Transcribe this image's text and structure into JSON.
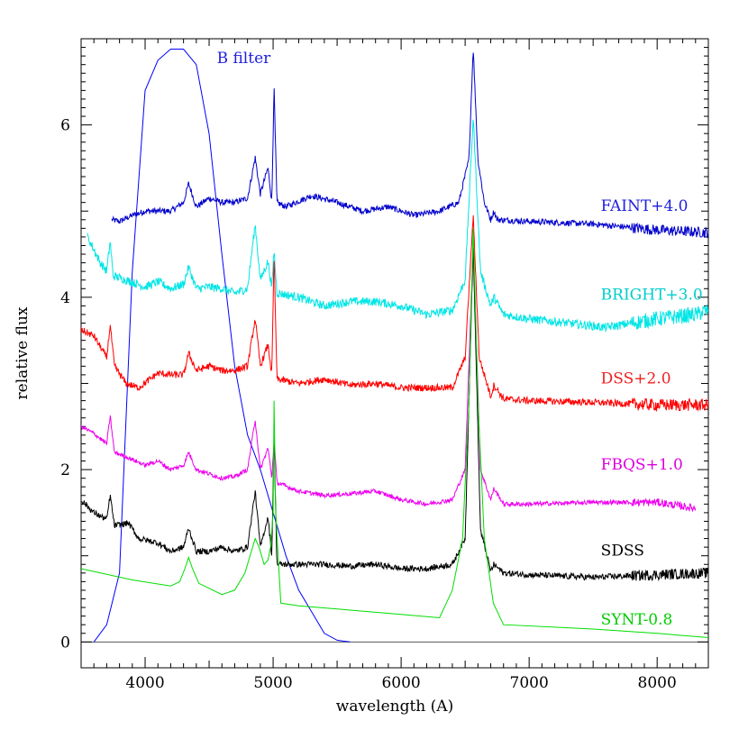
{
  "chart_data": {
    "type": "line",
    "title": "",
    "xlabel": "wavelength (A)",
    "ylabel": "relative flux",
    "xlim": [
      3500,
      8400
    ],
    "ylim": [
      -0.3,
      7.0
    ],
    "xticks": [
      4000,
      5000,
      6000,
      7000,
      8000
    ],
    "yticks": [
      0,
      2,
      4,
      6
    ],
    "zero_line": true,
    "series": [
      {
        "name": "B filter",
        "color": "#0000ff",
        "noise": 0,
        "points": [
          [
            3600,
            0.0
          ],
          [
            3700,
            0.2
          ],
          [
            3800,
            0.8
          ],
          [
            3900,
            4.3
          ],
          [
            4000,
            6.4
          ],
          [
            4100,
            6.75
          ],
          [
            4200,
            6.88
          ],
          [
            4300,
            6.88
          ],
          [
            4400,
            6.7
          ],
          [
            4500,
            5.9
          ],
          [
            4600,
            4.5
          ],
          [
            4700,
            3.2
          ],
          [
            4800,
            2.4
          ],
          [
            4900,
            2.0
          ],
          [
            5000,
            1.5
          ],
          [
            5100,
            1.0
          ],
          [
            5200,
            0.6
          ],
          [
            5300,
            0.35
          ],
          [
            5400,
            0.1
          ],
          [
            5500,
            0.02
          ],
          [
            5600,
            0.0
          ]
        ]
      },
      {
        "name": "FAINT+4.0",
        "color": "#0000cc",
        "noise": 0.035,
        "points": [
          [
            3740,
            4.9
          ],
          [
            3800,
            4.88
          ],
          [
            3900,
            4.95
          ],
          [
            4000,
            5.0
          ],
          [
            4100,
            5.0
          ],
          [
            4200,
            5.0
          ],
          [
            4300,
            5.1
          ],
          [
            4340,
            5.32
          ],
          [
            4400,
            5.05
          ],
          [
            4500,
            5.15
          ],
          [
            4600,
            5.1
          ],
          [
            4700,
            5.1
          ],
          [
            4800,
            5.15
          ],
          [
            4860,
            5.62
          ],
          [
            4900,
            5.2
          ],
          [
            4960,
            5.5
          ],
          [
            4990,
            5.1
          ],
          [
            5007,
            6.45
          ],
          [
            5030,
            5.1
          ],
          [
            5100,
            5.05
          ],
          [
            5300,
            5.18
          ],
          [
            5500,
            5.1
          ],
          [
            5700,
            5.0
          ],
          [
            5900,
            5.05
          ],
          [
            6100,
            4.95
          ],
          [
            6300,
            5.0
          ],
          [
            6450,
            5.1
          ],
          [
            6530,
            5.6
          ],
          [
            6563,
            6.9
          ],
          [
            6600,
            5.6
          ],
          [
            6650,
            5.1
          ],
          [
            6700,
            4.9
          ],
          [
            6725,
            5.0
          ],
          [
            6750,
            4.9
          ],
          [
            7000,
            4.88
          ],
          [
            7500,
            4.85
          ],
          [
            8000,
            4.78
          ],
          [
            8400,
            4.75
          ]
        ]
      },
      {
        "name": "BRIGHT+3.0",
        "color": "#00e5e5",
        "noise": 0.05,
        "points": [
          [
            3550,
            4.7
          ],
          [
            3650,
            4.4
          ],
          [
            3700,
            4.3
          ],
          [
            3727,
            4.65
          ],
          [
            3750,
            4.25
          ],
          [
            3850,
            4.2
          ],
          [
            4000,
            4.12
          ],
          [
            4100,
            4.18
          ],
          [
            4200,
            4.1
          ],
          [
            4300,
            4.15
          ],
          [
            4340,
            4.35
          ],
          [
            4400,
            4.1
          ],
          [
            4500,
            4.12
          ],
          [
            4600,
            4.1
          ],
          [
            4700,
            4.05
          ],
          [
            4800,
            4.1
          ],
          [
            4860,
            4.85
          ],
          [
            4900,
            4.2
          ],
          [
            4960,
            4.42
          ],
          [
            4990,
            4.1
          ],
          [
            5007,
            4.55
          ],
          [
            5030,
            4.05
          ],
          [
            5200,
            4.0
          ],
          [
            5400,
            3.9
          ],
          [
            5600,
            3.95
          ],
          [
            5800,
            3.95
          ],
          [
            6000,
            3.9
          ],
          [
            6200,
            3.8
          ],
          [
            6400,
            3.85
          ],
          [
            6500,
            4.2
          ],
          [
            6563,
            6.1
          ],
          [
            6620,
            4.3
          ],
          [
            6700,
            3.9
          ],
          [
            6725,
            4.0
          ],
          [
            6800,
            3.8
          ],
          [
            7000,
            3.75
          ],
          [
            7300,
            3.7
          ],
          [
            7600,
            3.65
          ],
          [
            8000,
            3.75
          ],
          [
            8300,
            3.8
          ],
          [
            8400,
            3.85
          ]
        ]
      },
      {
        "name": "DSS+2.0",
        "color": "#ff0000",
        "noise": 0.04,
        "points": [
          [
            3500,
            3.62
          ],
          [
            3600,
            3.55
          ],
          [
            3700,
            3.3
          ],
          [
            3727,
            3.68
          ],
          [
            3760,
            3.2
          ],
          [
            3850,
            3.0
          ],
          [
            3950,
            2.95
          ],
          [
            4100,
            3.12
          ],
          [
            4200,
            3.1
          ],
          [
            4300,
            3.1
          ],
          [
            4340,
            3.35
          ],
          [
            4400,
            3.15
          ],
          [
            4500,
            3.2
          ],
          [
            4600,
            3.15
          ],
          [
            4700,
            3.15
          ],
          [
            4800,
            3.2
          ],
          [
            4860,
            3.75
          ],
          [
            4900,
            3.2
          ],
          [
            4960,
            3.45
          ],
          [
            4990,
            3.1
          ],
          [
            5007,
            4.5
          ],
          [
            5030,
            3.05
          ],
          [
            5200,
            3.0
          ],
          [
            5400,
            3.05
          ],
          [
            5600,
            2.98
          ],
          [
            5800,
            3.0
          ],
          [
            6000,
            2.95
          ],
          [
            6200,
            2.95
          ],
          [
            6400,
            2.95
          ],
          [
            6500,
            3.3
          ],
          [
            6563,
            4.95
          ],
          [
            6610,
            3.3
          ],
          [
            6700,
            2.85
          ],
          [
            6725,
            2.98
          ],
          [
            6800,
            2.82
          ],
          [
            7000,
            2.8
          ],
          [
            7500,
            2.78
          ],
          [
            8000,
            2.75
          ],
          [
            8400,
            2.75
          ]
        ]
      },
      {
        "name": "FBQS+1.0",
        "color": "#ee00ee",
        "noise": 0.025,
        "points": [
          [
            3500,
            2.5
          ],
          [
            3600,
            2.42
          ],
          [
            3700,
            2.3
          ],
          [
            3727,
            2.62
          ],
          [
            3760,
            2.2
          ],
          [
            3850,
            2.15
          ],
          [
            4000,
            2.05
          ],
          [
            4100,
            2.1
          ],
          [
            4200,
            2.0
          ],
          [
            4300,
            2.05
          ],
          [
            4340,
            2.2
          ],
          [
            4400,
            2.0
          ],
          [
            4500,
            1.95
          ],
          [
            4600,
            1.9
          ],
          [
            4700,
            1.92
          ],
          [
            4800,
            2.0
          ],
          [
            4860,
            2.58
          ],
          [
            4900,
            2.0
          ],
          [
            4960,
            2.25
          ],
          [
            4990,
            1.9
          ],
          [
            5007,
            2.35
          ],
          [
            5030,
            1.85
          ],
          [
            5200,
            1.75
          ],
          [
            5400,
            1.7
          ],
          [
            5600,
            1.72
          ],
          [
            5800,
            1.75
          ],
          [
            6000,
            1.65
          ],
          [
            6200,
            1.6
          ],
          [
            6400,
            1.65
          ],
          [
            6500,
            2.0
          ],
          [
            6563,
            4.6
          ],
          [
            6620,
            2.0
          ],
          [
            6700,
            1.65
          ],
          [
            6725,
            1.78
          ],
          [
            6800,
            1.6
          ],
          [
            7000,
            1.6
          ],
          [
            7500,
            1.62
          ],
          [
            8000,
            1.62
          ],
          [
            8300,
            1.55
          ]
        ]
      },
      {
        "name": "SDSS",
        "color": "#000000",
        "noise": 0.035,
        "points": [
          [
            3500,
            1.65
          ],
          [
            3600,
            1.5
          ],
          [
            3700,
            1.42
          ],
          [
            3727,
            1.7
          ],
          [
            3760,
            1.35
          ],
          [
            3870,
            1.38
          ],
          [
            3950,
            1.2
          ],
          [
            4100,
            1.15
          ],
          [
            4200,
            1.05
          ],
          [
            4300,
            1.1
          ],
          [
            4340,
            1.32
          ],
          [
            4400,
            1.05
          ],
          [
            4500,
            1.05
          ],
          [
            4600,
            1.1
          ],
          [
            4700,
            1.05
          ],
          [
            4800,
            1.1
          ],
          [
            4860,
            1.75
          ],
          [
            4900,
            1.1
          ],
          [
            4960,
            1.45
          ],
          [
            4990,
            1.0
          ],
          [
            5007,
            2.4
          ],
          [
            5030,
            0.9
          ],
          [
            5200,
            0.9
          ],
          [
            5400,
            0.9
          ],
          [
            5600,
            0.88
          ],
          [
            5800,
            0.9
          ],
          [
            6000,
            0.85
          ],
          [
            6200,
            0.85
          ],
          [
            6400,
            0.9
          ],
          [
            6500,
            1.2
          ],
          [
            6563,
            4.6
          ],
          [
            6620,
            1.3
          ],
          [
            6700,
            0.82
          ],
          [
            6725,
            0.9
          ],
          [
            6800,
            0.8
          ],
          [
            7000,
            0.78
          ],
          [
            7500,
            0.75
          ],
          [
            8000,
            0.78
          ],
          [
            8400,
            0.8
          ]
        ]
      },
      {
        "name": "SYNT-0.8",
        "color": "#00dd00",
        "noise": 0,
        "points": [
          [
            3500,
            0.85
          ],
          [
            3900,
            0.72
          ],
          [
            4200,
            0.65
          ],
          [
            4270,
            0.7
          ],
          [
            4310,
            0.85
          ],
          [
            4340,
            0.98
          ],
          [
            4370,
            0.85
          ],
          [
            4420,
            0.68
          ],
          [
            4600,
            0.55
          ],
          [
            4700,
            0.6
          ],
          [
            4780,
            0.8
          ],
          [
            4830,
            1.05
          ],
          [
            4860,
            1.2
          ],
          [
            4890,
            1.1
          ],
          [
            4930,
            0.9
          ],
          [
            4960,
            0.95
          ],
          [
            4980,
            1.1
          ],
          [
            5000,
            1.5
          ],
          [
            5007,
            2.8
          ],
          [
            5020,
            1.5
          ],
          [
            5060,
            0.45
          ],
          [
            5200,
            0.42
          ],
          [
            6000,
            0.32
          ],
          [
            6300,
            0.28
          ],
          [
            6400,
            0.6
          ],
          [
            6480,
            1.2
          ],
          [
            6530,
            2.8
          ],
          [
            6563,
            4.8
          ],
          [
            6600,
            2.8
          ],
          [
            6650,
            1.2
          ],
          [
            6720,
            0.45
          ],
          [
            6800,
            0.2
          ],
          [
            7500,
            0.15
          ],
          [
            8000,
            0.1
          ],
          [
            8400,
            0.05
          ]
        ]
      }
    ],
    "line_labels": [
      {
        "text": "B filter",
        "color": "#2020dd",
        "x": 4560,
        "y": 6.72
      },
      {
        "text": "FAINT+4.0",
        "color": "#2020dd",
        "x": 7560,
        "y": 5.0
      },
      {
        "text": "BRIGHT+3.0",
        "color": "#00cccc",
        "x": 7560,
        "y": 3.97
      },
      {
        "text": "DSS+2.0",
        "color": "#ee2020",
        "x": 7560,
        "y": 3.0
      },
      {
        "text": "FBQS+1.0",
        "color": "#dd00dd",
        "x": 7560,
        "y": 2.0
      },
      {
        "text": "SDSS",
        "color": "#000000",
        "x": 7560,
        "y": 1.0
      },
      {
        "text": "SYNT-0.8",
        "color": "#00cc00",
        "x": 7560,
        "y": 0.2
      }
    ]
  }
}
